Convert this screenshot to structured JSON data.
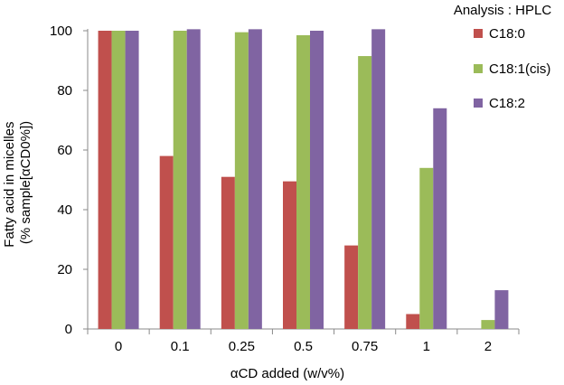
{
  "header": {
    "annotation": "Analysis : HPLC"
  },
  "chart_data": {
    "type": "bar",
    "title": "",
    "xlabel": "αCD added (w/v%)",
    "ylabel_lines": [
      "Fatty acid in micelles",
      "(% sample[αCD0%])"
    ],
    "categories": [
      "0",
      "0.1",
      "0.25",
      "0.5",
      "0.75",
      "1",
      "2"
    ],
    "ylim": [
      0,
      100
    ],
    "yticks": [
      0,
      20,
      40,
      60,
      80,
      100
    ],
    "grid": false,
    "legend_position": "top-right",
    "series": [
      {
        "name": "C18:0",
        "color": "#c0504d",
        "values": [
          100,
          58,
          51,
          49.5,
          28,
          5,
          0
        ]
      },
      {
        "name": "C18:1(cis)",
        "color": "#9bbb59",
        "values": [
          100,
          100,
          99.5,
          98.5,
          91.5,
          54,
          3
        ]
      },
      {
        "name": "C18:2",
        "color": "#8064a2",
        "values": [
          100,
          100.5,
          100.5,
          100,
          100.5,
          74,
          13
        ]
      }
    ]
  }
}
